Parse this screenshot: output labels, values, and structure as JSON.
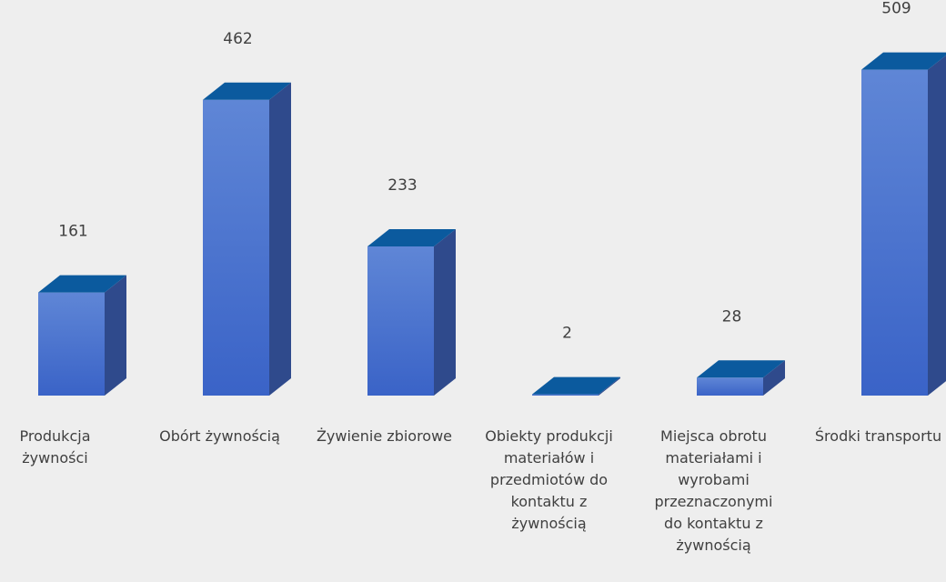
{
  "chart_data": {
    "type": "bar3d",
    "categories": [
      "Produkcja żywności",
      "Obórt żywnością",
      "Żywienie zbiorowe",
      "Obiekty produkcji materiałów i przedmiotów do kontaktu z żywnością",
      "Miejsca obrotu materiałami i wyrobami przeznaczonymi do kontaktu z żywnością",
      "Środki transportu"
    ],
    "values": [
      161,
      462,
      233,
      2,
      28,
      509
    ],
    "color": "#4a72d0"
  }
}
